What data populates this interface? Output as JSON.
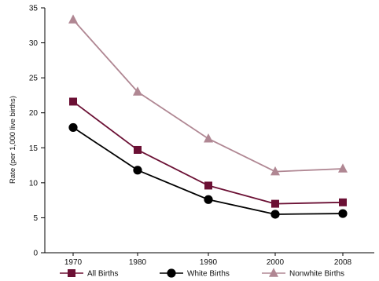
{
  "chart_data": {
    "type": "line",
    "title": "",
    "xlabel": "",
    "ylabel": "Rate (per 1,000 live births)",
    "categories": [
      "1970",
      "1980",
      "1990",
      "2000",
      "2008"
    ],
    "ylim": [
      0,
      35
    ],
    "yticks": [
      "0",
      "5",
      "10",
      "15",
      "20",
      "25",
      "30",
      "35"
    ],
    "grid": false,
    "legend_position": "bottom",
    "series": [
      {
        "name": "All Births",
        "values": [
          21.6,
          14.7,
          9.6,
          7.0,
          7.2
        ],
        "color": "#6b1034",
        "marker": "square"
      },
      {
        "name": "White Births",
        "values": [
          17.9,
          11.8,
          7.6,
          5.5,
          5.6
        ],
        "color": "#000000",
        "marker": "circle"
      },
      {
        "name": "Nonwhite Births",
        "values": [
          33.3,
          23.0,
          16.3,
          11.6,
          12.0
        ],
        "color": "#b08793",
        "marker": "triangle"
      }
    ]
  }
}
